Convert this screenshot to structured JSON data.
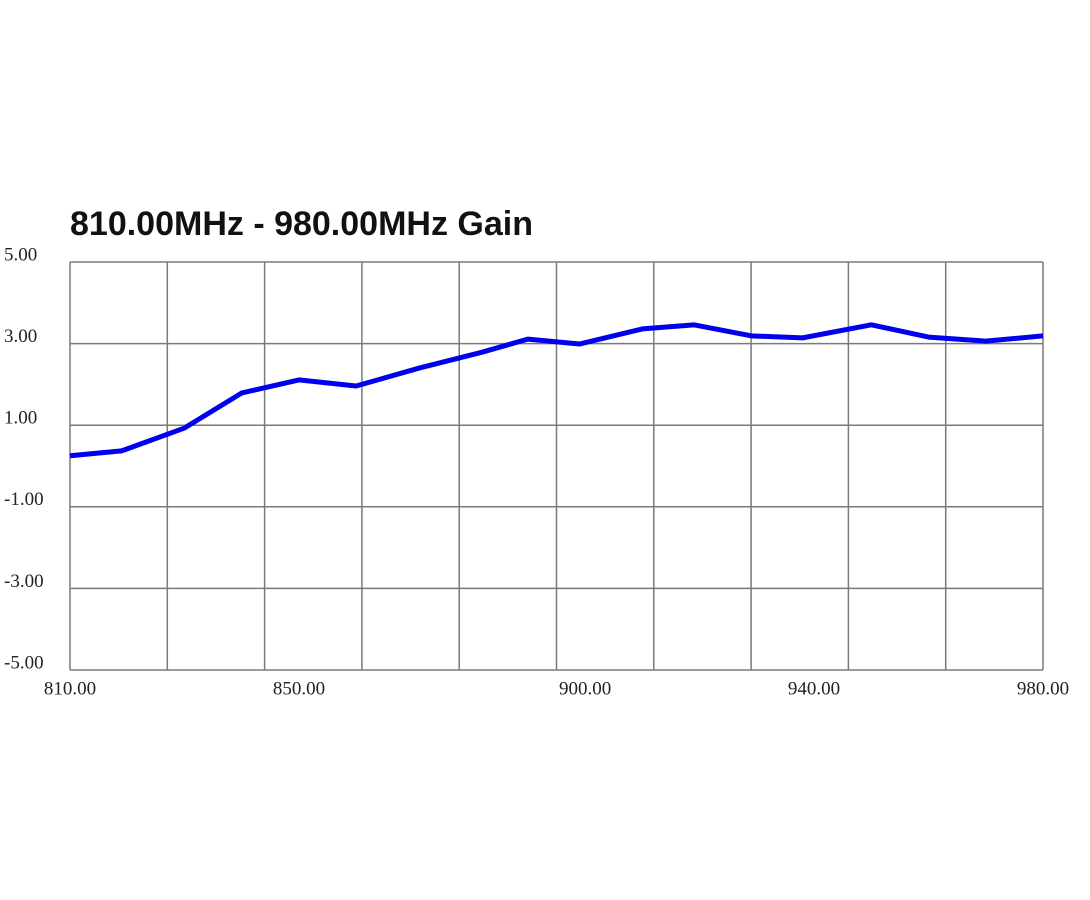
{
  "chart_data": {
    "type": "line",
    "title": "810.00MHz - 980.00MHz Gain",
    "x": [
      810,
      819,
      830,
      840,
      850,
      860,
      871,
      882,
      890,
      899,
      910,
      919,
      929,
      938,
      950,
      960,
      970,
      980
    ],
    "series": [
      {
        "color": "#0000ee",
        "values": [
          0.25,
          0.37,
          0.93,
          1.79,
          2.11,
          1.96,
          2.4,
          2.79,
          3.11,
          2.99,
          3.36,
          3.46,
          3.19,
          3.14,
          3.46,
          3.16,
          3.06,
          3.19
        ]
      }
    ],
    "xlim": [
      810,
      980
    ],
    "xticks": [
      {
        "value": 810,
        "label": "810.00"
      },
      {
        "value": 850,
        "label": "850.00"
      },
      {
        "value": 900,
        "label": "900.00"
      },
      {
        "value": 940,
        "label": "940.00"
      },
      {
        "value": 980,
        "label": "980.00"
      }
    ],
    "xgrid": [
      810,
      827,
      844,
      861,
      878,
      895,
      912,
      929,
      946,
      963,
      980
    ],
    "ylim": [
      -5,
      5
    ],
    "yticks": [
      {
        "value": -5,
        "label": "-5.00"
      },
      {
        "value": -3,
        "label": "-3.00"
      },
      {
        "value": -1,
        "label": "-1.00"
      },
      {
        "value": 1,
        "label": "1.00"
      },
      {
        "value": 3,
        "label": "3.00"
      },
      {
        "value": 5,
        "label": "5.00"
      }
    ],
    "grid": true
  }
}
